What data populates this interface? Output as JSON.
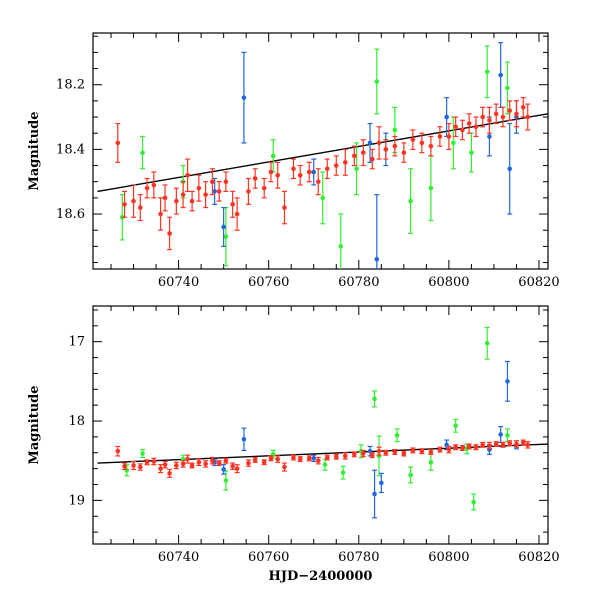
{
  "chart_data": [
    {
      "type": "scatter",
      "title": "",
      "xlabel": "",
      "ylabel": "Magnitude",
      "xlim": [
        60721,
        60822
      ],
      "ylim": [
        18.77,
        18.04
      ],
      "y_inverted": true,
      "xticks": [
        60740,
        60760,
        60780,
        60800,
        60820
      ],
      "yticks": [
        18.2,
        18.4,
        18.6
      ],
      "grid": false,
      "fit_line": {
        "x": [
          60722,
          60822
        ],
        "y": [
          18.53,
          18.29
        ],
        "color": "#000000"
      },
      "series": [
        {
          "color": "#ff3322",
          "points": [
            [
              60726.5,
              18.38,
              0.06
            ],
            [
              60728.0,
              18.57,
              0.04
            ],
            [
              60730.0,
              18.56,
              0.05
            ],
            [
              60731.5,
              18.58,
              0.04
            ],
            [
              60733.0,
              18.52,
              0.03
            ],
            [
              60734.5,
              18.51,
              0.04
            ],
            [
              60736.0,
              18.6,
              0.05
            ],
            [
              60737.0,
              18.55,
              0.04
            ],
            [
              60738.0,
              18.66,
              0.05
            ],
            [
              60739.5,
              18.56,
              0.04
            ],
            [
              60741.0,
              18.54,
              0.04
            ],
            [
              60742.0,
              18.48,
              0.05
            ],
            [
              60743.0,
              18.56,
              0.03
            ],
            [
              60744.5,
              18.52,
              0.04
            ],
            [
              60746.0,
              18.54,
              0.04
            ],
            [
              60747.5,
              18.5,
              0.04
            ],
            [
              60749.0,
              18.53,
              0.03
            ],
            [
              60750.5,
              18.5,
              0.03
            ],
            [
              60752.0,
              18.57,
              0.04
            ],
            [
              60753.0,
              18.6,
              0.05
            ],
            [
              60755.5,
              18.53,
              0.04
            ],
            [
              60757.0,
              18.49,
              0.03
            ],
            [
              60759.0,
              18.52,
              0.03
            ],
            [
              60760.5,
              18.47,
              0.03
            ],
            [
              60762.0,
              18.48,
              0.04
            ],
            [
              60763.5,
              18.58,
              0.05
            ],
            [
              60765.5,
              18.46,
              0.03
            ],
            [
              60767.0,
              18.48,
              0.03
            ],
            [
              60769.0,
              18.47,
              0.03
            ],
            [
              60771.0,
              18.5,
              0.04
            ],
            [
              60773.0,
              18.46,
              0.03
            ],
            [
              60775.0,
              18.45,
              0.03
            ],
            [
              60777.0,
              18.44,
              0.04
            ],
            [
              60779.0,
              18.42,
              0.03
            ],
            [
              60781.0,
              18.41,
              0.04
            ],
            [
              60783.0,
              18.43,
              0.03
            ],
            [
              60784.5,
              18.38,
              0.05
            ],
            [
              60786.0,
              18.4,
              0.03
            ],
            [
              60788.0,
              18.39,
              0.03
            ],
            [
              60790.0,
              18.41,
              0.03
            ],
            [
              60792.0,
              18.37,
              0.03
            ],
            [
              60794.0,
              18.38,
              0.03
            ],
            [
              60796.0,
              18.39,
              0.03
            ],
            [
              60798.0,
              18.36,
              0.03
            ],
            [
              60800.0,
              18.36,
              0.04
            ],
            [
              60801.5,
              18.33,
              0.03
            ],
            [
              60803.0,
              18.34,
              0.03
            ],
            [
              60804.5,
              18.32,
              0.03
            ],
            [
              60806.0,
              18.33,
              0.03
            ],
            [
              60807.5,
              18.3,
              0.03
            ],
            [
              60809.0,
              18.31,
              0.04
            ],
            [
              60810.5,
              18.29,
              0.03
            ],
            [
              60812.0,
              18.3,
              0.03
            ],
            [
              60813.5,
              18.28,
              0.03
            ],
            [
              60815.0,
              18.29,
              0.04
            ],
            [
              60816.5,
              18.27,
              0.03
            ],
            [
              60817.5,
              18.3,
              0.04
            ]
          ]
        },
        {
          "color": "#33ee33",
          "points": [
            [
              60727.5,
              18.61,
              0.07
            ],
            [
              60732.0,
              18.41,
              0.05
            ],
            [
              60741.0,
              18.5,
              0.05
            ],
            [
              60750.5,
              18.67,
              0.09
            ],
            [
              60761.0,
              18.42,
              0.05
            ],
            [
              60772.0,
              18.55,
              0.08
            ],
            [
              60776.0,
              18.7,
              0.1
            ],
            [
              60779.5,
              18.46,
              0.08
            ],
            [
              60784.0,
              18.19,
              0.1
            ],
            [
              60788.0,
              18.34,
              0.07
            ],
            [
              60791.5,
              18.56,
              0.1
            ],
            [
              60796.0,
              18.52,
              0.1
            ],
            [
              60801.0,
              18.38,
              0.08
            ],
            [
              60805.0,
              18.41,
              0.06
            ],
            [
              60808.5,
              18.16,
              0.08
            ],
            [
              60813.0,
              18.21,
              0.08
            ]
          ]
        },
        {
          "color": "#2266dd",
          "points": [
            [
              60748.0,
              18.53,
              0.04
            ],
            [
              60750.0,
              18.64,
              0.06
            ],
            [
              60754.5,
              18.24,
              0.14
            ],
            [
              60770.0,
              18.47,
              0.04
            ],
            [
              60782.5,
              18.38,
              0.06
            ],
            [
              60784.0,
              18.74,
              0.2
            ],
            [
              60786.0,
              18.4,
              0.05
            ],
            [
              60799.5,
              18.3,
              0.06
            ],
            [
              60809.0,
              18.36,
              0.06
            ],
            [
              60811.5,
              18.17,
              0.1
            ],
            [
              60813.5,
              18.46,
              0.14
            ],
            [
              60815.0,
              18.3,
              0.05
            ]
          ]
        }
      ]
    },
    {
      "type": "scatter",
      "title": "",
      "xlabel": "HJD−2400000",
      "ylabel": "Magnitude",
      "xlim": [
        60721,
        60822
      ],
      "ylim": [
        19.55,
        16.55
      ],
      "y_inverted": true,
      "xticks": [
        60740,
        60760,
        60780,
        60800,
        60820
      ],
      "yticks": [
        17,
        18,
        19
      ],
      "grid": false,
      "fit_line": {
        "x": [
          60722,
          60822
        ],
        "y": [
          18.53,
          18.29
        ],
        "color": "#000000"
      },
      "series": [
        {
          "color": "#ff3322",
          "points": [
            [
              60726.5,
              18.38,
              0.06
            ],
            [
              60728.0,
              18.57,
              0.04
            ],
            [
              60730.0,
              18.56,
              0.05
            ],
            [
              60731.5,
              18.58,
              0.04
            ],
            [
              60733.0,
              18.52,
              0.03
            ],
            [
              60734.5,
              18.51,
              0.04
            ],
            [
              60736.0,
              18.6,
              0.05
            ],
            [
              60737.0,
              18.55,
              0.04
            ],
            [
              60738.0,
              18.66,
              0.05
            ],
            [
              60739.5,
              18.56,
              0.04
            ],
            [
              60741.0,
              18.54,
              0.04
            ],
            [
              60742.0,
              18.48,
              0.05
            ],
            [
              60743.0,
              18.56,
              0.03
            ],
            [
              60744.5,
              18.52,
              0.04
            ],
            [
              60746.0,
              18.54,
              0.04
            ],
            [
              60747.5,
              18.5,
              0.04
            ],
            [
              60749.0,
              18.53,
              0.03
            ],
            [
              60750.5,
              18.5,
              0.03
            ],
            [
              60752.0,
              18.57,
              0.04
            ],
            [
              60753.0,
              18.6,
              0.05
            ],
            [
              60755.5,
              18.53,
              0.04
            ],
            [
              60757.0,
              18.49,
              0.03
            ],
            [
              60759.0,
              18.52,
              0.03
            ],
            [
              60760.5,
              18.47,
              0.03
            ],
            [
              60762.0,
              18.48,
              0.04
            ],
            [
              60763.5,
              18.58,
              0.05
            ],
            [
              60765.5,
              18.46,
              0.03
            ],
            [
              60767.0,
              18.48,
              0.03
            ],
            [
              60769.0,
              18.47,
              0.03
            ],
            [
              60771.0,
              18.5,
              0.04
            ],
            [
              60773.0,
              18.46,
              0.03
            ],
            [
              60775.0,
              18.45,
              0.03
            ],
            [
              60777.0,
              18.44,
              0.04
            ],
            [
              60779.0,
              18.42,
              0.03
            ],
            [
              60781.0,
              18.41,
              0.04
            ],
            [
              60783.0,
              18.43,
              0.03
            ],
            [
              60784.5,
              18.38,
              0.05
            ],
            [
              60786.0,
              18.4,
              0.03
            ],
            [
              60788.0,
              18.39,
              0.03
            ],
            [
              60790.0,
              18.41,
              0.03
            ],
            [
              60792.0,
              18.37,
              0.03
            ],
            [
              60794.0,
              18.38,
              0.03
            ],
            [
              60796.0,
              18.39,
              0.03
            ],
            [
              60798.0,
              18.36,
              0.03
            ],
            [
              60800.0,
              18.36,
              0.04
            ],
            [
              60801.5,
              18.33,
              0.03
            ],
            [
              60803.0,
              18.34,
              0.03
            ],
            [
              60804.5,
              18.32,
              0.03
            ],
            [
              60806.0,
              18.33,
              0.03
            ],
            [
              60807.5,
              18.3,
              0.03
            ],
            [
              60809.0,
              18.31,
              0.04
            ],
            [
              60810.5,
              18.29,
              0.03
            ],
            [
              60812.0,
              18.3,
              0.03
            ],
            [
              60813.5,
              18.28,
              0.03
            ],
            [
              60815.0,
              18.29,
              0.04
            ],
            [
              60816.5,
              18.27,
              0.03
            ],
            [
              60817.5,
              18.3,
              0.04
            ]
          ]
        },
        {
          "color": "#33ee33",
          "points": [
            [
              60728.5,
              18.62,
              0.07
            ],
            [
              60732.0,
              18.41,
              0.05
            ],
            [
              60741.0,
              18.48,
              0.05
            ],
            [
              60750.5,
              18.75,
              0.12
            ],
            [
              60761.0,
              18.42,
              0.05
            ],
            [
              60772.5,
              18.55,
              0.07
            ],
            [
              60776.5,
              18.65,
              0.08
            ],
            [
              60780.5,
              18.38,
              0.08
            ],
            [
              60783.5,
              17.72,
              0.1
            ],
            [
              60784.5,
              18.44,
              0.25
            ],
            [
              60788.5,
              18.18,
              0.08
            ],
            [
              60791.5,
              18.68,
              0.1
            ],
            [
              60796.0,
              18.52,
              0.1
            ],
            [
              60801.5,
              18.06,
              0.08
            ],
            [
              60804.0,
              18.35,
              0.06
            ],
            [
              60805.5,
              19.02,
              0.1
            ],
            [
              60808.5,
              17.02,
              0.2
            ],
            [
              60813.0,
              18.18,
              0.08
            ]
          ]
        },
        {
          "color": "#2266dd",
          "points": [
            [
              60748.0,
              18.52,
              0.04
            ],
            [
              60750.0,
              18.61,
              0.06
            ],
            [
              60754.5,
              18.23,
              0.14
            ],
            [
              60770.0,
              18.47,
              0.04
            ],
            [
              60782.5,
              18.38,
              0.06
            ],
            [
              60783.5,
              18.92,
              0.3
            ],
            [
              60785.0,
              18.78,
              0.12
            ],
            [
              60799.5,
              18.3,
              0.06
            ],
            [
              60809.0,
              18.36,
              0.06
            ],
            [
              60811.5,
              18.17,
              0.1
            ],
            [
              60813.0,
              17.5,
              0.25
            ],
            [
              60815.0,
              18.3,
              0.05
            ]
          ]
        }
      ]
    }
  ]
}
